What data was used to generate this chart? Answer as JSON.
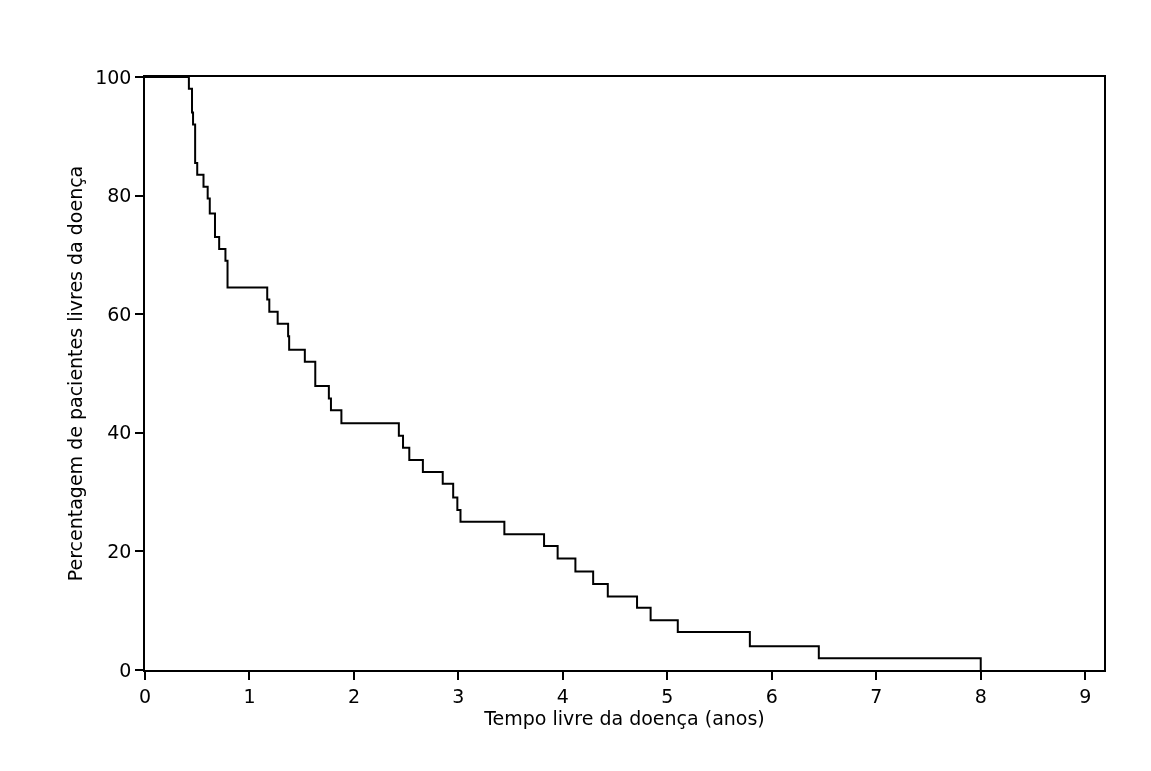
{
  "chart_data": {
    "type": "step",
    "xlabel": "Tempo livre da doença (anos)",
    "ylabel": "Percentagem de pacientes livres da doença",
    "x": [
      0,
      0.42,
      0.45,
      0.46,
      0.48,
      0.5,
      0.56,
      0.6,
      0.62,
      0.67,
      0.71,
      0.77,
      0.79,
      1.17,
      1.19,
      1.27,
      1.37,
      1.38,
      1.53,
      1.63,
      1.76,
      1.78,
      1.88,
      2.43,
      2.47,
      2.53,
      2.66,
      2.85,
      2.95,
      2.99,
      3.02,
      3.44,
      3.82,
      3.95,
      4.12,
      4.29,
      4.43,
      4.71,
      4.84,
      5.1,
      5.79,
      6.45,
      8.0
    ],
    "series": [
      {
        "color": "#000000",
        "values": [
          100,
          98,
          94,
          92,
          85.5,
          83.5,
          81.5,
          79.5,
          77,
          73,
          71,
          69,
          64.5,
          62.5,
          60.4,
          58.4,
          56.3,
          54,
          52,
          47.9,
          45.8,
          43.8,
          41.6,
          39.5,
          37.5,
          35.4,
          33.4,
          31.4,
          29.1,
          27,
          25,
          22.9,
          20.9,
          18.8,
          16.6,
          14.5,
          12.4,
          10.5,
          8.4,
          6.4,
          4,
          2,
          0
        ]
      }
    ],
    "xlim": [
      0,
      9.18
    ],
    "xticks": [
      0,
      1,
      2,
      3,
      4,
      5,
      6,
      7,
      8,
      9
    ],
    "ylim": [
      0,
      100
    ],
    "yticks": [
      0,
      20,
      40,
      60,
      80,
      100
    ],
    "marker": "none",
    "line_style": "solid"
  }
}
